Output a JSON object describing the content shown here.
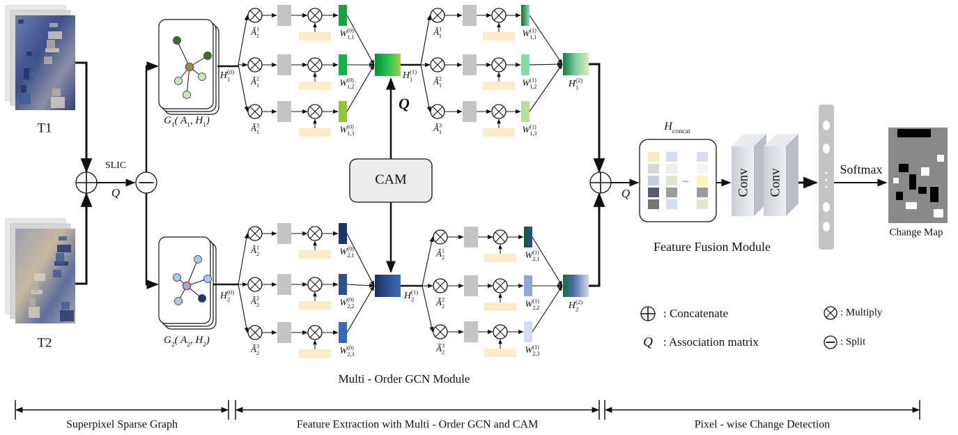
{
  "inputs": {
    "t1": "T1",
    "t2": "T2"
  },
  "slic": "SLIC",
  "symbols": {
    "q": "Q"
  },
  "graphs": [
    [
      {
        "t": "G",
        "sub": "1"
      },
      {
        "t": "( A",
        "sub": "1"
      },
      {
        "t": ", H",
        "sub": "1"
      },
      {
        "t": ")"
      }
    ],
    [
      {
        "t": "G",
        "sub": "2"
      },
      {
        "t": "( A",
        "sub": "2"
      },
      {
        "t": ", H",
        "sub": "2"
      },
      {
        "t": ")"
      }
    ]
  ],
  "gcn": {
    "inputs": [
      [
        {
          "t": "H",
          "sub": "1",
          "sup": "(0)"
        }
      ],
      [
        {
          "t": "H",
          "sub": "2",
          "sup": "(0)"
        }
      ]
    ],
    "layers": [
      [
        {
          "a_hats": [
            [
              {
                "t": "Â",
                "sub": "1",
                "sup": "1"
              }
            ],
            [
              {
                "t": "Â",
                "sub": "1",
                "sup": "2"
              }
            ],
            [
              {
                "t": "Â",
                "sub": "1",
                "sup": "3"
              }
            ]
          ],
          "weights": [
            [
              {
                "t": "W",
                "sub": "1,1",
                "sup": "(0)"
              }
            ],
            [
              {
                "t": "W",
                "sub": "1,2",
                "sup": "(0)"
              }
            ],
            [
              {
                "t": "W",
                "sub": "1,3",
                "sup": "(0)"
              }
            ]
          ],
          "output": [
            {
              "t": "H",
              "sub": "1",
              "sup": "(1)"
            }
          ]
        },
        {
          "a_hats": [
            [
              {
                "t": "Â",
                "sub": "2",
                "sup": "1"
              }
            ],
            [
              {
                "t": "Â",
                "sub": "2",
                "sup": "2"
              }
            ],
            [
              {
                "t": "Â",
                "sub": "2",
                "sup": "3"
              }
            ]
          ],
          "weights": [
            [
              {
                "t": "W",
                "sub": "2,1",
                "sup": "(0)"
              }
            ],
            [
              {
                "t": "W",
                "sub": "2,2",
                "sup": "(0)"
              }
            ],
            [
              {
                "t": "W",
                "sub": "2,3",
                "sup": "(0)"
              }
            ]
          ],
          "output": [
            {
              "t": "H",
              "sub": "2",
              "sup": "(1)"
            }
          ]
        }
      ],
      [
        {
          "a_hats": [
            [
              {
                "t": "Â",
                "sub": "1",
                "sup": "1"
              }
            ],
            [
              {
                "t": "Â",
                "sub": "1",
                "sup": "2"
              }
            ],
            [
              {
                "t": "Â",
                "sub": "1",
                "sup": "3"
              }
            ]
          ],
          "weights": [
            [
              {
                "t": "W",
                "sub": "1,1",
                "sup": "(1)"
              }
            ],
            [
              {
                "t": "W",
                "sub": "1,2",
                "sup": "(1)"
              }
            ],
            [
              {
                "t": "W",
                "sub": "1,3",
                "sup": "(1)"
              }
            ]
          ],
          "output": [
            {
              "t": "H",
              "sub": "1",
              "sup": "(2)"
            }
          ]
        },
        {
          "a_hats": [
            [
              {
                "t": "Â",
                "sub": "2",
                "sup": "1"
              }
            ],
            [
              {
                "t": "Â",
                "sub": "2",
                "sup": "2"
              }
            ],
            [
              {
                "t": "Â",
                "sub": "2",
                "sup": "3"
              }
            ]
          ],
          "weights": [
            [
              {
                "t": "W",
                "sub": "2,1",
                "sup": "(1)"
              }
            ],
            [
              {
                "t": "W",
                "sub": "2,2",
                "sup": "(1)"
              }
            ],
            [
              {
                "t": "W",
                "sub": "2,3",
                "sup": "(1)"
              }
            ]
          ],
          "output": [
            {
              "t": "H",
              "sub": "2",
              "sup": "(2)"
            }
          ]
        }
      ]
    ],
    "cam": "CAM",
    "title": "Multi - Order GCN Module"
  },
  "fusion": {
    "h_concat": [
      {
        "t": "H",
        "sub": "concat"
      }
    ],
    "ellipsis": "...",
    "conv": [
      "Conv",
      "Conv"
    ],
    "title": "Feature Fusion Module"
  },
  "output": {
    "softmax": "Softmax",
    "change_map": "Change Map"
  },
  "legend": {
    "concatenate": ": Concatenate",
    "association": ": Association matrix",
    "multiply": ": Multiply",
    "split": ": Split"
  },
  "stages": [
    "Superpixel Sparse Graph",
    "Feature Extraction with Multi - Order GCN and CAM",
    "Pixel - wise Change Detection"
  ]
}
